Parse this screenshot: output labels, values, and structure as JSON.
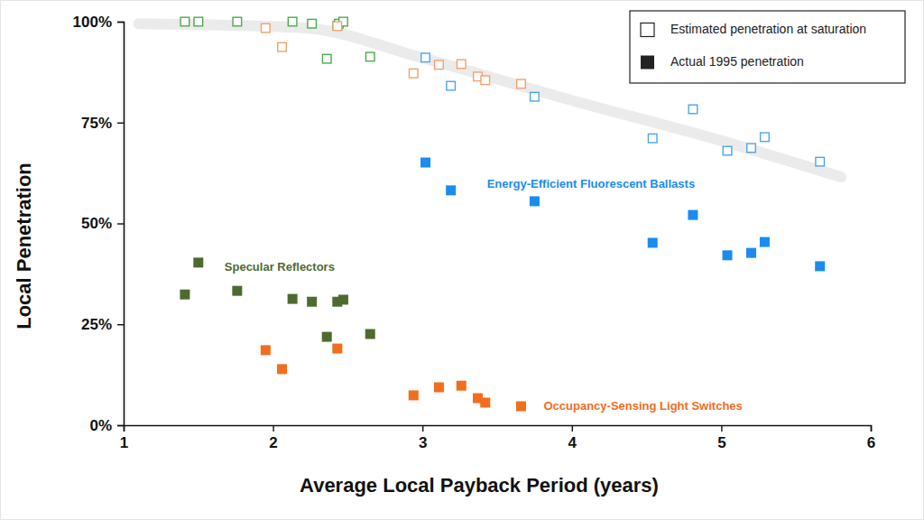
{
  "chart_data": {
    "type": "scatter",
    "xlabel": "Average Local Payback Period (years)",
    "ylabel": "Local Penetration",
    "xlim": [
      1,
      6
    ],
    "xticks": [
      1,
      2,
      3,
      4,
      5,
      6
    ],
    "ylim": [
      0,
      100
    ],
    "yticks": [
      {
        "value": 0,
        "label": "0%"
      },
      {
        "value": 25,
        "label": "25%"
      },
      {
        "value": 50,
        "label": "50%"
      },
      {
        "value": 75,
        "label": "75%"
      },
      {
        "value": 100,
        "label": "100%"
      }
    ],
    "grid": false,
    "legend": "top-right",
    "legend_entries": [
      {
        "label": "Estimated penetration at saturation",
        "marker": "hollow-square"
      },
      {
        "label": "Actual 1995 penetration",
        "marker": "square"
      }
    ],
    "trend": {
      "color": "#ebebeb",
      "x": [
        1.1,
        2.2,
        3.0,
        4.0,
        5.0,
        5.8
      ],
      "values": [
        99.5,
        98.5,
        91,
        80.5,
        70.5,
        61.5
      ]
    },
    "series": [
      {
        "name": "Specular Reflectors",
        "marker": "square",
        "color": "#4e6b2f",
        "x": [
          1.41,
          1.5,
          1.76,
          2.13,
          2.26,
          2.43,
          2.47,
          2.36,
          2.65
        ],
        "values": [
          32.4,
          40.3,
          33.3,
          31.3,
          30.6,
          30.6,
          31.1,
          21.9,
          22.6
        ]
      },
      {
        "marker": "hollow-square",
        "color": "#4caa4c",
        "x": [
          1.41,
          1.5,
          1.76,
          2.13,
          2.26,
          2.43,
          2.44,
          2.47,
          2.36,
          2.65
        ],
        "values": [
          100,
          100,
          100,
          100,
          99.5,
          99,
          99.5,
          100,
          90.8,
          91.3
        ]
      },
      {
        "name": "Occupancy-Sensing Light Switches",
        "marker": "square",
        "color": "#f26d1d",
        "x": [
          1.95,
          2.06,
          2.43,
          2.94,
          3.11,
          3.26,
          3.37,
          3.42,
          3.66
        ],
        "values": [
          18.6,
          13.9,
          19.0,
          7.4,
          9.4,
          9.8,
          6.7,
          5.6,
          4.7
        ]
      },
      {
        "marker": "hollow-square",
        "color": "#f2a26a",
        "x": [
          1.95,
          2.06,
          2.43,
          2.94,
          3.11,
          3.26,
          3.37,
          3.42,
          3.66
        ],
        "values": [
          98.4,
          93.7,
          98.9,
          87.2,
          89.3,
          89.5,
          86.4,
          85.5,
          84.6
        ]
      },
      {
        "name": "Energy-Efficient Fluorescent Ballasts",
        "marker": "square",
        "color": "#1a8cf0",
        "x": [
          3.02,
          3.19,
          3.75,
          4.54,
          4.81,
          5.04,
          5.2,
          5.29,
          5.66
        ],
        "values": [
          65.1,
          58.2,
          55.5,
          45.2,
          52.1,
          42.1,
          42.7,
          45.4,
          39.4
        ]
      },
      {
        "marker": "hollow-square",
        "color": "#4aa6f0",
        "x": [
          3.02,
          3.19,
          3.75,
          4.54,
          4.81,
          5.04,
          5.2,
          5.29,
          5.66
        ],
        "values": [
          91.1,
          84.1,
          81.4,
          71.1,
          78.3,
          68.0,
          68.7,
          71.4,
          65.3
        ]
      }
    ]
  }
}
